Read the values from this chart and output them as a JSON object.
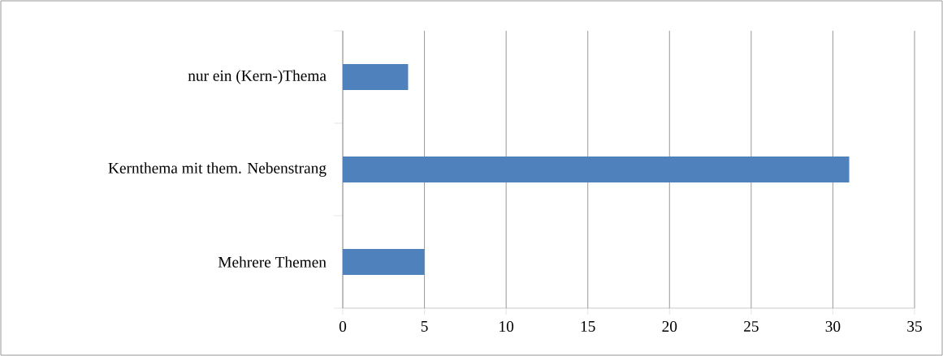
{
  "chart_data": {
    "type": "bar",
    "orientation": "horizontal",
    "categories": [
      "nur ein (Kern-)Thema",
      "Kernthema mit them. Nebenstrang",
      "Mehrere Themen"
    ],
    "values": [
      4,
      31,
      5
    ],
    "color": "#4f81bd",
    "xlim": [
      0,
      35
    ],
    "xticks": [
      0,
      5,
      10,
      15,
      20,
      25,
      30,
      35
    ],
    "grid": "x"
  }
}
